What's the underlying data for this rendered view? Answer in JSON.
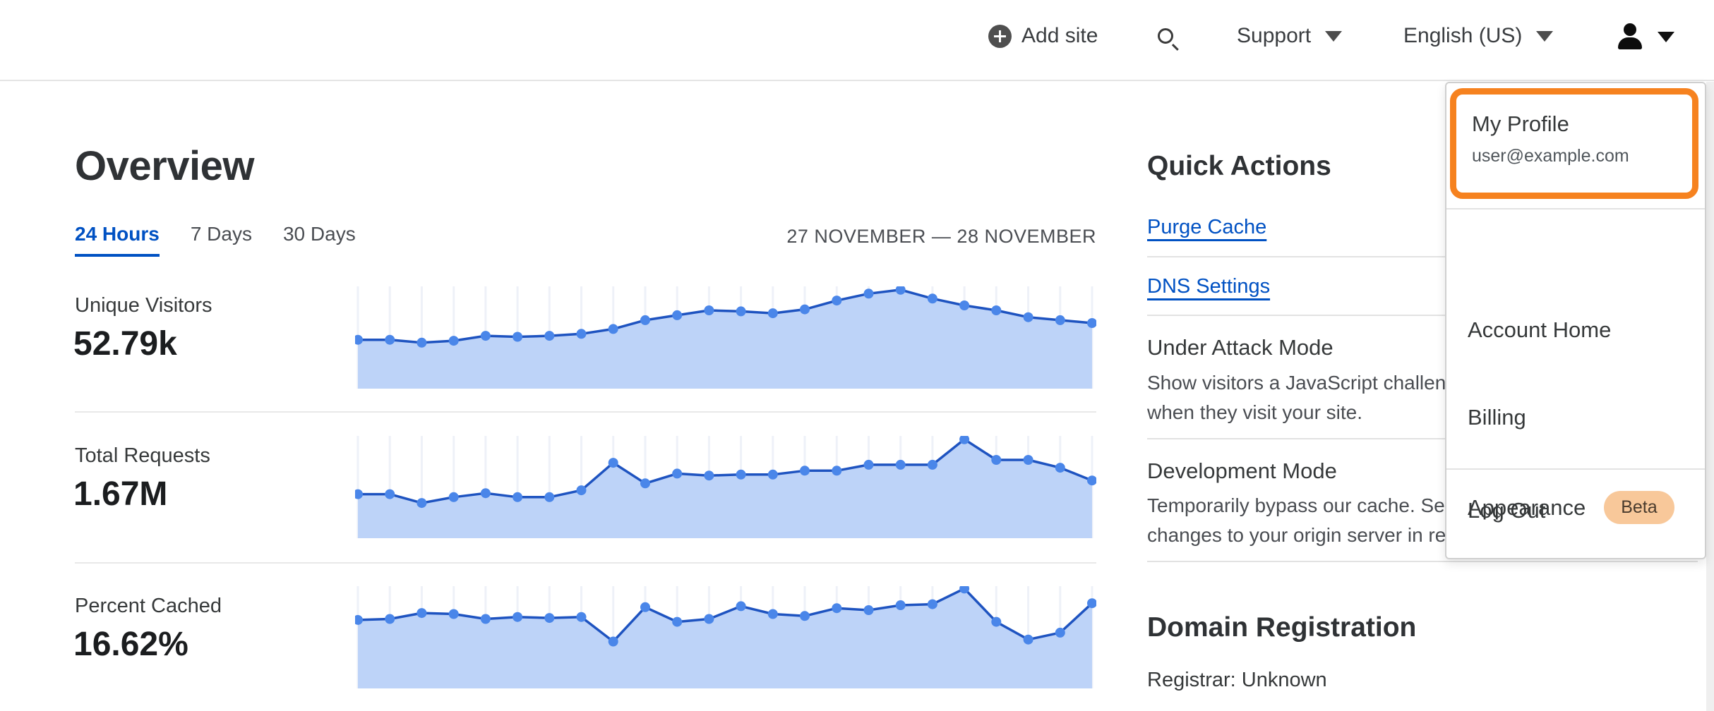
{
  "header": {
    "add_site_label": "Add site",
    "support_label": "Support",
    "language_label": "English (US)"
  },
  "user_menu": {
    "profile": {
      "label": "My Profile",
      "email": "user@example.com"
    },
    "items": [
      {
        "label": "Account Home"
      },
      {
        "label": "Billing"
      },
      {
        "label": "Appearance",
        "badge": "Beta"
      }
    ],
    "logout_label": "Log Out"
  },
  "overview": {
    "title": "Overview",
    "tabs": [
      {
        "label": "24 Hours",
        "active": true
      },
      {
        "label": "7 Days",
        "active": false
      },
      {
        "label": "30 Days",
        "active": false
      }
    ],
    "date_range": "27 NOVEMBER — 28 NOVEMBER",
    "metrics": [
      {
        "label": "Unique Visitors",
        "value": "52.79k"
      },
      {
        "label": "Total Requests",
        "value": "1.67M"
      },
      {
        "label": "Percent Cached",
        "value": "16.62%"
      }
    ]
  },
  "quick_actions": {
    "title": "Quick Actions",
    "links": [
      "Purge Cache",
      "DNS Settings"
    ],
    "sections": [
      {
        "title": "Under Attack Mode",
        "desc_line1": "Show visitors a JavaScript challenge",
        "desc_line2": "when they visit your site."
      },
      {
        "title": "Development Mode",
        "desc_line1": "Temporarily bypass our cache. See",
        "desc_line2": "changes to your origin server in real time."
      }
    ]
  },
  "domain_registration": {
    "title": "Domain Registration",
    "registrar": "Registrar: Unknown"
  },
  "colors": {
    "accent_orange": "#f6821f",
    "link_blue": "#0051c3",
    "chart_dot": "#4a86e9",
    "chart_line": "#1e53c0",
    "chart_fill": "#bdd3f8",
    "chart_grid": "#eef1f8",
    "beta_badge_bg": "#f8c89a"
  },
  "chart_data": [
    {
      "type": "area",
      "title": "Unique Visitors (24 Hours)",
      "total_shown": "52.79k",
      "x": [
        0,
        1,
        2,
        3,
        4,
        5,
        6,
        7,
        8,
        9,
        10,
        11,
        12,
        13,
        14,
        15,
        16,
        17,
        18,
        19,
        20,
        21,
        22,
        23
      ],
      "xlabel": "27 November – 28 November (hourly, axis unlabeled)",
      "ylabel": "relative height % (y-axis unlabeled in UI)",
      "ylim": [
        0,
        100
      ],
      "grid": "vertical only",
      "values": [
        47,
        47,
        44,
        46,
        51,
        50,
        51,
        53,
        58,
        67,
        72,
        77,
        76,
        74,
        78,
        87,
        94,
        98,
        89,
        82,
        77,
        70,
        67,
        64
      ]
    },
    {
      "type": "area",
      "title": "Total Requests (24 Hours)",
      "total_shown": "1.67M",
      "x": [
        0,
        1,
        2,
        3,
        4,
        5,
        6,
        7,
        8,
        9,
        10,
        11,
        12,
        13,
        14,
        15,
        16,
        17,
        18,
        19,
        20,
        21,
        22,
        23
      ],
      "xlabel": "27 November – 28 November (hourly, axis unlabeled)",
      "ylabel": "relative height % (y-axis unlabeled in UI)",
      "ylim": [
        0,
        100
      ],
      "grid": "vertical only",
      "values": [
        42,
        42,
        33,
        39,
        43,
        39,
        39,
        46,
        74,
        53,
        63,
        61,
        62,
        62,
        66,
        66,
        72,
        72,
        72,
        98,
        77,
        77,
        69,
        56
      ]
    },
    {
      "type": "area",
      "title": "Percent Cached (24 Hours)",
      "total_shown": "16.62%",
      "x": [
        0,
        1,
        2,
        3,
        4,
        5,
        6,
        7,
        8,
        9,
        10,
        11,
        12,
        13,
        14,
        15,
        16,
        17,
        18,
        19,
        20,
        21,
        22,
        23
      ],
      "xlabel": "27 November – 28 November (hourly, axis unlabeled)",
      "ylabel": "relative height % (y-axis unlabeled in UI)",
      "ylim": [
        0,
        100
      ],
      "grid": "vertical only",
      "values": [
        67,
        68,
        74,
        73,
        68,
        70,
        69,
        70,
        45,
        80,
        65,
        68,
        81,
        73,
        71,
        79,
        77,
        82,
        83,
        99,
        65,
        47,
        54,
        84
      ]
    }
  ]
}
